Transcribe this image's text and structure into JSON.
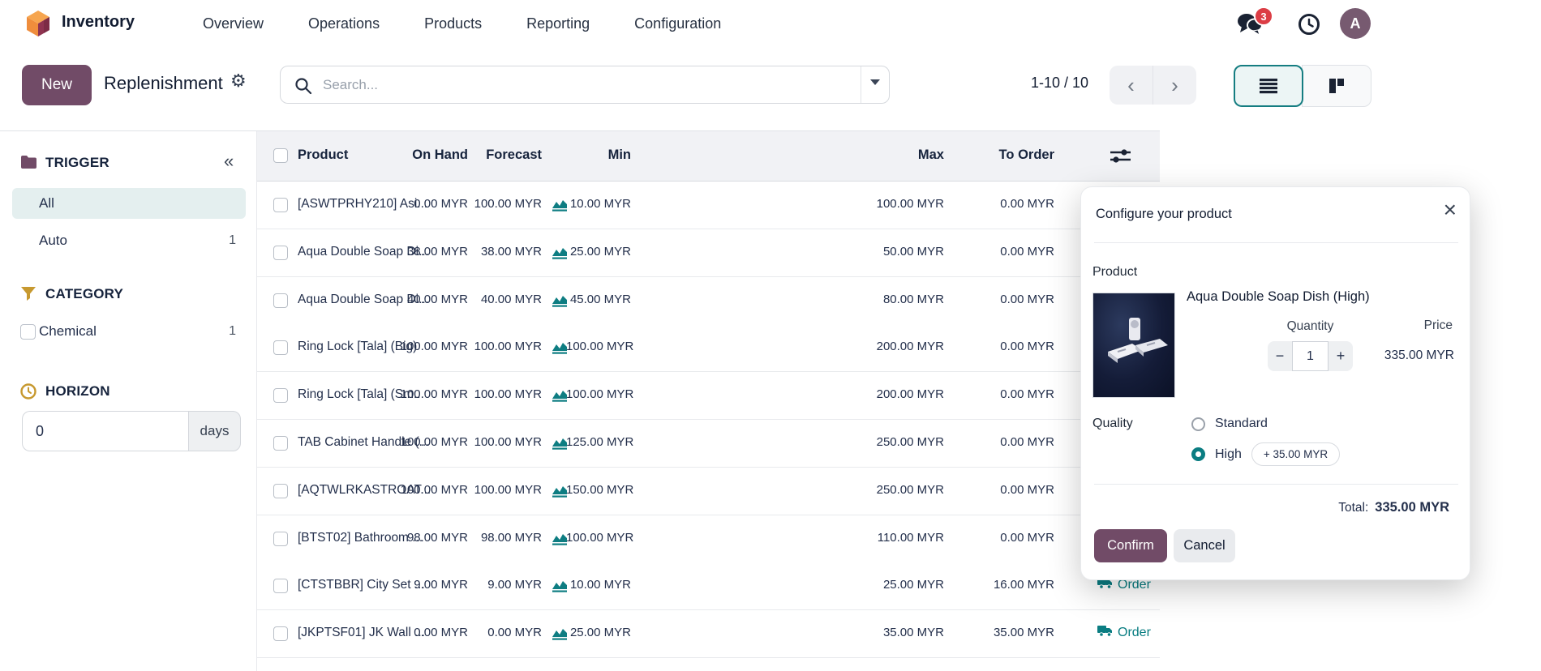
{
  "nav": {
    "app_name": "Inventory",
    "items": [
      "Overview",
      "Operations",
      "Products",
      "Reporting",
      "Configuration"
    ],
    "message_badge": "3",
    "avatar_initial": "A"
  },
  "control_panel": {
    "new_label": "New",
    "title": "Replenishment",
    "search_placeholder": "Search...",
    "pager": "1-10 / 10"
  },
  "sidebar": {
    "trigger": {
      "title": "TRIGGER",
      "items": [
        {
          "label": "All",
          "count": "",
          "selected": true
        },
        {
          "label": "Auto",
          "count": "1",
          "selected": false
        }
      ]
    },
    "category": {
      "title": "CATEGORY",
      "items": [
        {
          "label": "Chemical",
          "count": "1"
        }
      ]
    },
    "horizon": {
      "title": "HORIZON",
      "value": "0",
      "unit": "days"
    }
  },
  "table": {
    "columns": {
      "product": "Product",
      "on_hand": "On Hand",
      "forecast": "Forecast",
      "min": "Min",
      "max": "Max",
      "to_order": "To Order"
    },
    "order_action_label": "Order",
    "rows": [
      {
        "product": "[ASWTPRHY210] Asi...",
        "on_hand": "0.00 MYR",
        "forecast": "100.00 MYR",
        "min": "10.00 MYR",
        "max": "100.00 MYR",
        "to_order": "0.00 MYR",
        "order": false
      },
      {
        "product": "Aqua Double Soap Di...",
        "on_hand": "38.00 MYR",
        "forecast": "38.00 MYR",
        "min": "25.00 MYR",
        "max": "50.00 MYR",
        "to_order": "0.00 MYR",
        "order": false
      },
      {
        "product": "Aqua Double Soap Di...",
        "on_hand": "40.00 MYR",
        "forecast": "40.00 MYR",
        "min": "45.00 MYR",
        "max": "80.00 MYR",
        "to_order": "0.00 MYR",
        "order": false
      },
      {
        "product": "Ring Lock [Tala] (Big)",
        "on_hand": "100.00 MYR",
        "forecast": "100.00 MYR",
        "min": "100.00 MYR",
        "max": "200.00 MYR",
        "to_order": "0.00 MYR",
        "order": false
      },
      {
        "product": "Ring Lock [Tala] (Sm...",
        "on_hand": "100.00 MYR",
        "forecast": "100.00 MYR",
        "min": "100.00 MYR",
        "max": "200.00 MYR",
        "to_order": "0.00 MYR",
        "order": false
      },
      {
        "product": "TAB Cabinet Handle (...",
        "on_hand": "100.00 MYR",
        "forecast": "100.00 MYR",
        "min": "125.00 MYR",
        "max": "250.00 MYR",
        "to_order": "0.00 MYR",
        "order": false
      },
      {
        "product": "[AQTWLRKASTROAT...",
        "on_hand": "100.00 MYR",
        "forecast": "100.00 MYR",
        "min": "150.00 MYR",
        "max": "250.00 MYR",
        "to_order": "0.00 MYR",
        "order": false
      },
      {
        "product": "[BTST02] Bathroom ...",
        "on_hand": "98.00 MYR",
        "forecast": "98.00 MYR",
        "min": "100.00 MYR",
        "max": "110.00 MYR",
        "to_order": "0.00 MYR",
        "order": false
      },
      {
        "product": "[CTSTBBR] City Set ...",
        "on_hand": "9.00 MYR",
        "forecast": "9.00 MYR",
        "min": "10.00 MYR",
        "max": "25.00 MYR",
        "to_order": "16.00 MYR",
        "order": true
      },
      {
        "product": "[JKPTSF01] JK Wall ...",
        "on_hand": "0.00 MYR",
        "forecast": "0.00 MYR",
        "min": "25.00 MYR",
        "max": "35.00 MYR",
        "to_order": "35.00 MYR",
        "order": true
      }
    ]
  },
  "modal": {
    "title": "Configure your product",
    "product_label": "Product",
    "product_name": "Aqua Double Soap Dish (High)",
    "quantity_label": "Quantity",
    "price_label": "Price",
    "quantity_value": "1",
    "minus": "−",
    "plus": "+",
    "price_value": "335.00 MYR",
    "quality_label": "Quality",
    "options": [
      {
        "label": "Standard",
        "selected": false,
        "extra": ""
      },
      {
        "label": "High",
        "selected": true,
        "extra": "+ 35.00 MYR"
      }
    ],
    "total_label": "Total:",
    "total_value": "335.00 MYR",
    "confirm_label": "Confirm",
    "cancel_label": "Cancel"
  },
  "colors": {
    "brand_purple": "#714b67",
    "accent_teal": "#017e84",
    "selected_filter_bg": "#e4efef",
    "badge_red": "#dc3d45",
    "gold_icon": "#c7992f"
  }
}
